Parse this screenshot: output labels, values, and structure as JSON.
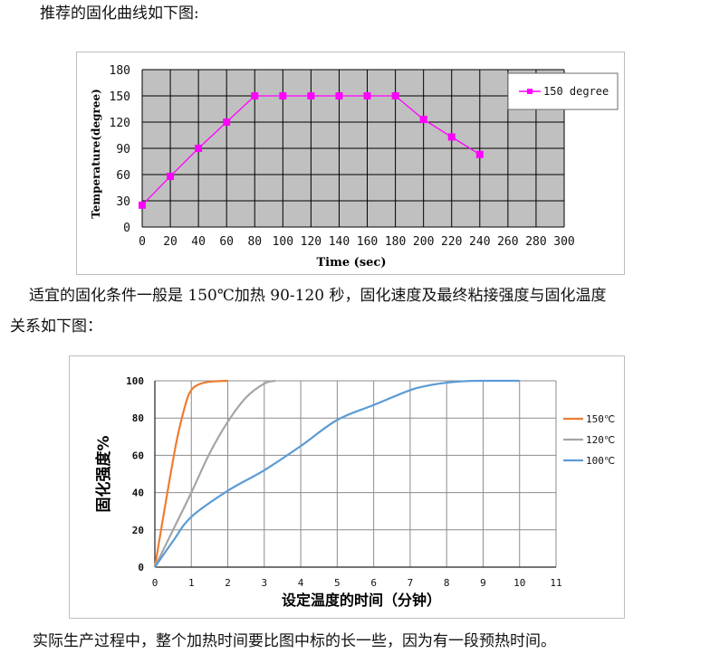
{
  "paragraphs": {
    "p1": "推荐的固化曲线如下图:",
    "p2": "适宜的固化条件一般是 150℃加热 90-120 秒，固化速度及最终粘接强度与固化温度",
    "p3": "关系如下图：",
    "p4": "实际生产过程中，整个加热时间要比图中标的长一些，因为有一段预热时间。"
  },
  "chart_data": [
    {
      "type": "line",
      "xlabel": "Time (sec)",
      "ylabel": "Temperature(degree)",
      "xlim": [
        0,
        300
      ],
      "ylim": [
        0,
        180
      ],
      "xticks": [
        "0",
        "20",
        "40",
        "60",
        "80",
        "100",
        "120",
        "140",
        "160",
        "180",
        "200",
        "220",
        "240",
        "260",
        "280",
        "300"
      ],
      "yticks": [
        "0",
        "30",
        "60",
        "90",
        "120",
        "150",
        "180"
      ],
      "grid": true,
      "background": "#c0c0c0",
      "legend_position": "top-right",
      "series": [
        {
          "name": "150 degree",
          "color": "#ff00ff",
          "marker": "square",
          "x": [
            0,
            20,
            40,
            60,
            80,
            100,
            120,
            140,
            160,
            180,
            200,
            220,
            240
          ],
          "y": [
            25,
            58,
            90,
            120,
            150,
            150,
            150,
            150,
            150,
            150,
            123,
            103,
            83
          ]
        }
      ]
    },
    {
      "type": "line",
      "xlabel": "设定温度的时间（分钟）",
      "ylabel": "固化强度%",
      "xlim": [
        0,
        11
      ],
      "ylim": [
        0,
        100
      ],
      "xticks": [
        "0",
        "1",
        "2",
        "3",
        "4",
        "5",
        "6",
        "7",
        "8",
        "9",
        "10",
        "11"
      ],
      "yticks": [
        "0",
        "20",
        "40",
        "60",
        "80",
        "100"
      ],
      "grid": true,
      "legend_position": "right",
      "series": [
        {
          "name": "150℃",
          "color": "#ed7d31",
          "x": [
            0,
            0.3,
            0.6,
            0.85,
            1.0,
            1.2,
            1.5,
            2.0
          ],
          "y": [
            0,
            35,
            68,
            88,
            95,
            98,
            99.5,
            100
          ]
        },
        {
          "name": "120℃",
          "color": "#a5a5a5",
          "x": [
            0,
            0.5,
            1.0,
            1.5,
            2.0,
            2.5,
            3.0,
            3.3
          ],
          "y": [
            0,
            20,
            40,
            61,
            78,
            91,
            98.5,
            100
          ]
        },
        {
          "name": "100℃",
          "color": "#5b9bd5",
          "x": [
            0,
            0.5,
            1.0,
            2.0,
            3.0,
            4.0,
            5.0,
            6.0,
            7.0,
            7.5,
            8.0,
            8.5,
            9.0,
            10.0
          ],
          "y": [
            0,
            14,
            27,
            41,
            52,
            65,
            79,
            87,
            95,
            97.5,
            99,
            99.8,
            100,
            100
          ]
        }
      ]
    }
  ]
}
